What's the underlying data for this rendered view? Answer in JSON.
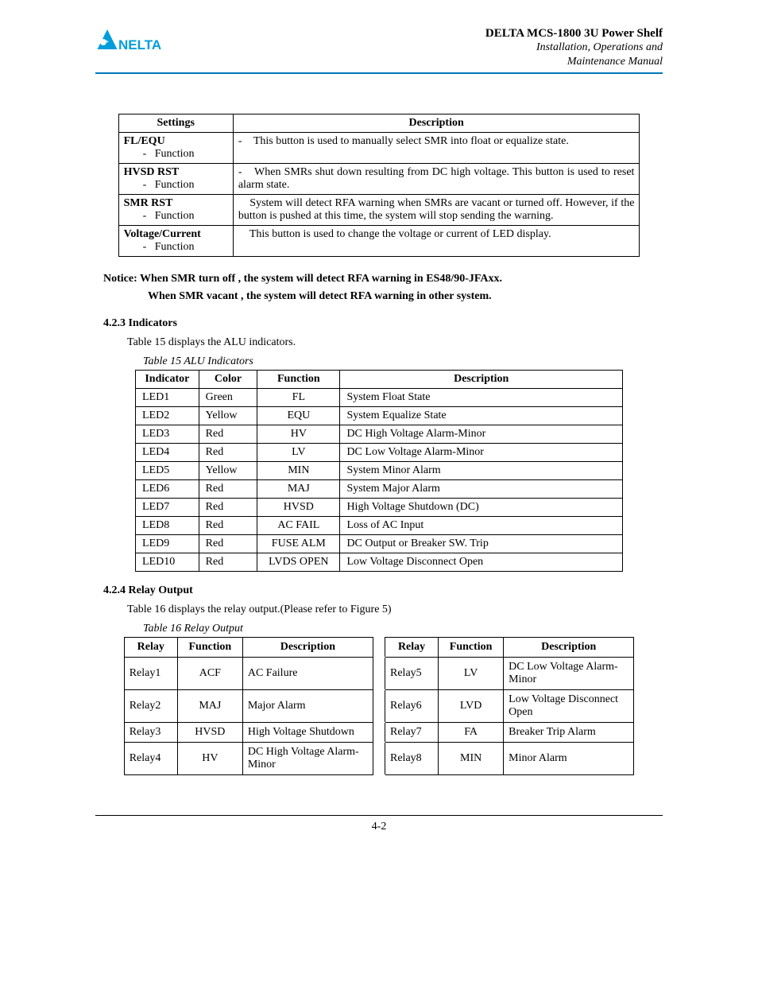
{
  "header": {
    "title": "DELTA MCS-1800 3U Power Shelf",
    "subtitle1": "Installation, Operations and",
    "subtitle2": "Maintenance Manual",
    "logo_colors": {
      "primary": "#009ddc",
      "dark": "#0060a9"
    }
  },
  "settings_table": {
    "headers": [
      "Settings",
      "Description"
    ],
    "rows": [
      {
        "label": "FL/EQU",
        "sub": "Function",
        "desc": "This button is used to manually select SMR into float or equalize state."
      },
      {
        "label": "HVSD RST",
        "sub": "Function",
        "desc": "When SMRs shut down resulting from DC high voltage.  This button is used to reset alarm state."
      },
      {
        "label": "SMR RST",
        "sub": "Function",
        "desc": "System will detect RFA warning when SMRs are vacant or turned off. However, if the button is pushed at this time, the system will stop sending the warning."
      },
      {
        "label": "Voltage/Current",
        "sub": "Function",
        "desc": "This button is used to change the voltage or current of LED display."
      }
    ]
  },
  "notice1": "Notice: When SMR turn off , the system will detect RFA warning in ES48/90-JFAxx.",
  "notice2": "When SMR vacant , the system will detect RFA warning in other system.",
  "sec423": {
    "num_title": "4.2.3   Indicators",
    "intro": "Table 15 displays the ALU indicators.",
    "caption": "Table 15 ALU Indicators"
  },
  "indicators_table": {
    "headers": [
      "Indicator",
      "Color",
      "Function",
      "Description"
    ],
    "rows": [
      [
        "LED1",
        "Green",
        "FL",
        "System Float State"
      ],
      [
        "LED2",
        "Yellow",
        "EQU",
        "System Equalize State"
      ],
      [
        "LED3",
        "Red",
        "HV",
        "DC High Voltage Alarm-Minor"
      ],
      [
        "LED4",
        "Red",
        "LV",
        "DC Low Voltage Alarm-Minor"
      ],
      [
        "LED5",
        "Yellow",
        "MIN",
        "System Minor Alarm"
      ],
      [
        "LED6",
        "Red",
        "MAJ",
        "System Major Alarm"
      ],
      [
        "LED7",
        "Red",
        "HVSD",
        "High Voltage Shutdown (DC)"
      ],
      [
        "LED8",
        "Red",
        "AC FAIL",
        "Loss of AC Input"
      ],
      [
        "LED9",
        "Red",
        "FUSE ALM",
        "DC Output or Breaker SW. Trip"
      ],
      [
        "LED10",
        "Red",
        "LVDS OPEN",
        "Low Voltage Disconnect Open"
      ]
    ]
  },
  "sec424": {
    "num_title": "4.2.4   Relay Output",
    "intro": "Table 16 displays the relay output.(Please refer to Figure 5)",
    "caption": "Table 16 Relay Output"
  },
  "relay_table": {
    "headers": [
      "Relay",
      "Function",
      "Description",
      "Relay",
      "Function",
      "Description"
    ],
    "rows": [
      [
        "Relay1",
        "ACF",
        "AC Failure",
        "Relay5",
        "LV",
        "DC Low Voltage Alarm-Minor"
      ],
      [
        "Relay2",
        "MAJ",
        "Major Alarm",
        "Relay6",
        "LVD",
        "Low Voltage Disconnect Open"
      ],
      [
        "Relay3",
        "HVSD",
        "High Voltage Shutdown",
        "Relay7",
        "FA",
        "Breaker Trip Alarm"
      ],
      [
        "Relay4",
        "HV",
        "DC High Voltage Alarm-Minor",
        "Relay8",
        "MIN",
        "Minor Alarm"
      ]
    ]
  },
  "page_number": "4-2"
}
